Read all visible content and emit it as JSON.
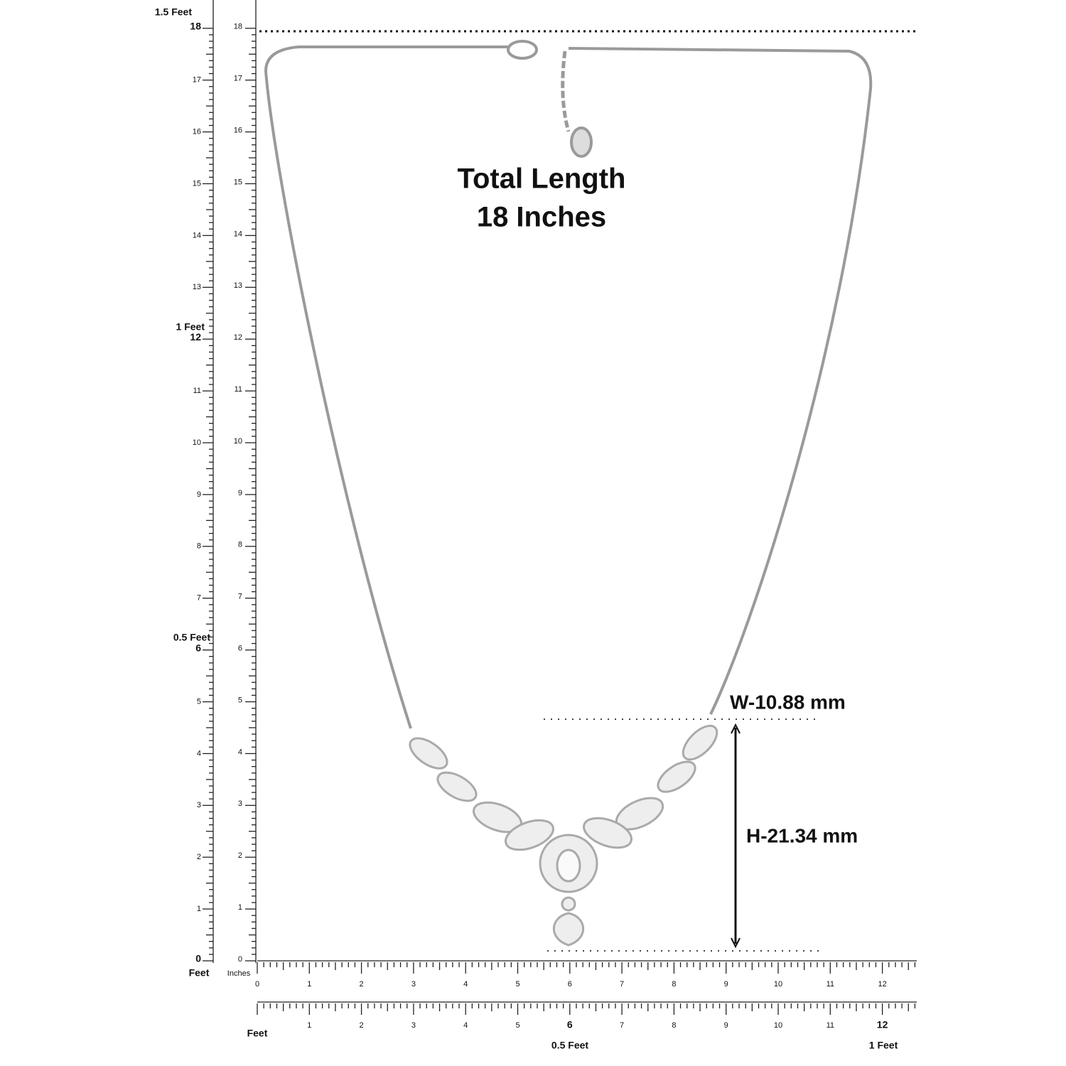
{
  "annotation": {
    "title": "Total Length",
    "length": "18 Inches",
    "width": "W-10.88 mm",
    "height": "H-21.34 mm"
  },
  "left_ruler": {
    "outer_labels": [
      0,
      1,
      2,
      3,
      4,
      5,
      6,
      7,
      8,
      9,
      10,
      11,
      12,
      13,
      14,
      15,
      16,
      17,
      18
    ],
    "inner_labels": [
      0,
      1,
      2,
      3,
      4,
      5,
      6,
      7,
      8,
      9,
      10,
      11,
      12,
      13,
      14,
      15,
      16,
      17,
      18
    ],
    "half_foot": "0.5 Feet",
    "one_foot": "1 Feet",
    "one_half_foot": "1.5 Feet",
    "feet_unit": "Feet",
    "inches_unit": "Inches"
  },
  "bottom_ruler": {
    "labels": [
      0,
      1,
      2,
      3,
      4,
      5,
      6,
      7,
      8,
      9,
      10,
      11,
      12
    ]
  },
  "feet_ruler": {
    "labels": [
      1,
      2,
      3,
      4,
      5,
      6,
      7,
      8,
      9,
      10,
      11,
      12
    ],
    "unit": "Feet",
    "half_foot": "0.5 Feet",
    "one_foot": "1 Feet"
  }
}
